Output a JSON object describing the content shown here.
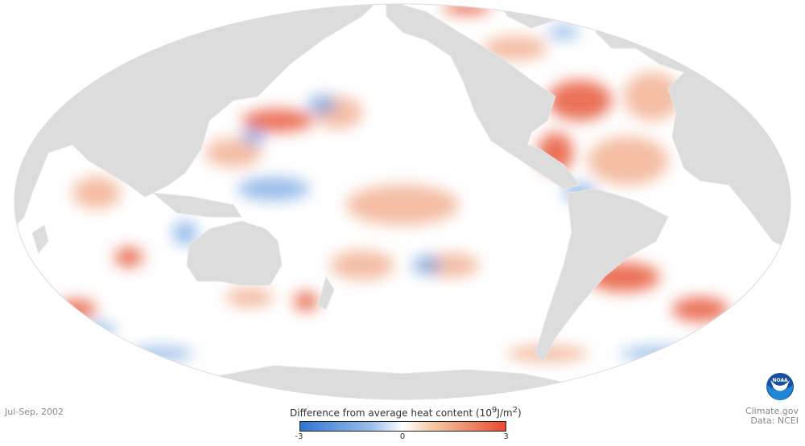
{
  "period": "Jul-Sep, 2002",
  "legend": {
    "title": "Difference from average heat content",
    "unit_prefix": "(10",
    "unit_exp": "9",
    "unit_mid": "J/m",
    "unit_exp2": "2",
    "unit_suffix": ")",
    "min_label": "-3",
    "mid_label": "0",
    "max_label": "3",
    "range": [
      -3,
      3
    ],
    "colors": {
      "low": "#2f75d6",
      "mid": "#ffffff",
      "high": "#ea4a2f"
    }
  },
  "credits": {
    "source": "Climate.gov",
    "data": "Data: NCEI"
  },
  "logo": {
    "text": "NOAA"
  },
  "colors": {
    "land": "#dcdcdc",
    "ocean": "#ffffff",
    "warm": "#e8573a",
    "cool": "#4d8ad8"
  }
}
